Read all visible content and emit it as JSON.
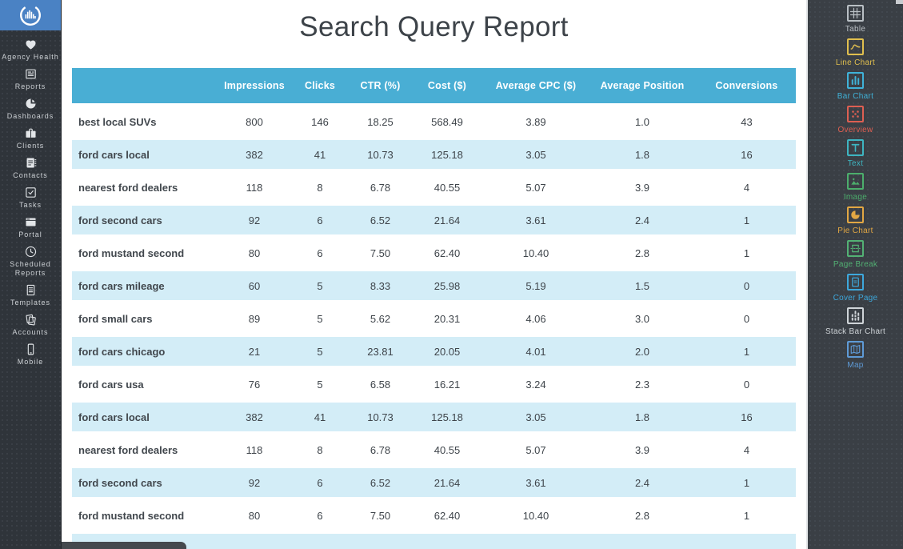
{
  "report": {
    "title": "Search Query Report"
  },
  "left_sidebar": {
    "logo_icon": "bar-chart-circle-logo",
    "items": [
      {
        "id": "agency-health",
        "label": "Agency Health",
        "icon": "heart"
      },
      {
        "id": "reports",
        "label": "Reports",
        "icon": "report-document"
      },
      {
        "id": "dashboards",
        "label": "Dashboards",
        "icon": "pie-dashboard"
      },
      {
        "id": "clients",
        "label": "Clients",
        "icon": "briefcase"
      },
      {
        "id": "contacts",
        "label": "Contacts",
        "icon": "address-book"
      },
      {
        "id": "tasks",
        "label": "Tasks",
        "icon": "checkbox"
      },
      {
        "id": "portal",
        "label": "Portal",
        "icon": "browser-window"
      },
      {
        "id": "scheduled-reports",
        "label": "Scheduled Reports",
        "icon": "clock"
      },
      {
        "id": "templates",
        "label": "Templates",
        "icon": "template-document"
      },
      {
        "id": "accounts",
        "label": "Accounts",
        "icon": "stacked-pages"
      },
      {
        "id": "mobile",
        "label": "Mobile",
        "icon": "smartphone"
      }
    ]
  },
  "table": {
    "columns": [
      "",
      "Impressions",
      "Clicks",
      "CTR (%)",
      "Cost ($)",
      "Average CPC ($)",
      "Average Position",
      "Conversions"
    ],
    "rows": [
      [
        "best local SUVs",
        "800",
        "146",
        "18.25",
        "568.49",
        "3.89",
        "1.0",
        "43"
      ],
      [
        "ford cars local",
        "382",
        "41",
        "10.73",
        "125.18",
        "3.05",
        "1.8",
        "16"
      ],
      [
        "nearest ford dealers",
        "118",
        "8",
        "6.78",
        "40.55",
        "5.07",
        "3.9",
        "4"
      ],
      [
        "ford second cars",
        "92",
        "6",
        "6.52",
        "21.64",
        "3.61",
        "2.4",
        "1"
      ],
      [
        "ford mustand second",
        "80",
        "6",
        "7.50",
        "62.40",
        "10.40",
        "2.8",
        "1"
      ],
      [
        "ford cars mileage",
        "60",
        "5",
        "8.33",
        "25.98",
        "5.19",
        "1.5",
        "0"
      ],
      [
        "ford small cars",
        "89",
        "5",
        "5.62",
        "20.31",
        "4.06",
        "3.0",
        "0"
      ],
      [
        "ford cars chicago",
        "21",
        "5",
        "23.81",
        "20.05",
        "4.01",
        "2.0",
        "1"
      ],
      [
        "ford cars usa",
        "76",
        "5",
        "6.58",
        "16.21",
        "3.24",
        "2.3",
        "0"
      ],
      [
        "ford cars local",
        "382",
        "41",
        "10.73",
        "125.18",
        "3.05",
        "1.8",
        "16"
      ],
      [
        "nearest ford dealers",
        "118",
        "8",
        "6.78",
        "40.55",
        "5.07",
        "3.9",
        "4"
      ],
      [
        "ford second cars",
        "92",
        "6",
        "6.52",
        "21.64",
        "3.61",
        "2.4",
        "1"
      ],
      [
        "ford mustand second",
        "80",
        "6",
        "7.50",
        "62.40",
        "10.40",
        "2.8",
        "1"
      ]
    ]
  },
  "right_sidebar": {
    "items": [
      {
        "id": "table",
        "label": "Table",
        "icon": "table-grid",
        "color": "#b9bfc4"
      },
      {
        "id": "line-chart",
        "label": "Line Chart",
        "icon": "line-chart",
        "color": "#e0bf4e"
      },
      {
        "id": "bar-chart",
        "label": "Bar Chart",
        "icon": "bar-chart",
        "color": "#3fb2d8"
      },
      {
        "id": "overview",
        "label": "Overview",
        "icon": "overview-dots",
        "color": "#dd5f52"
      },
      {
        "id": "text",
        "label": "Text",
        "icon": "text",
        "color": "#3eb5c1"
      },
      {
        "id": "image",
        "label": "Image",
        "icon": "image",
        "color": "#4cae6c"
      },
      {
        "id": "pie-chart",
        "label": "Pie Chart",
        "icon": "pie-chart",
        "color": "#e2a743"
      },
      {
        "id": "page-break",
        "label": "Page Break",
        "icon": "page-break",
        "color": "#53b174"
      },
      {
        "id": "cover-page",
        "label": "Cover Page",
        "icon": "cover-page",
        "color": "#3da8dc"
      },
      {
        "id": "stack-bar-chart",
        "label": "Stack Bar Chart",
        "icon": "stacked-bar-chart",
        "color": "#cfd4d8"
      },
      {
        "id": "map",
        "label": "Map",
        "icon": "map",
        "color": "#5e9ad6"
      }
    ]
  },
  "colors": {
    "table_header_bg": "#49aed4",
    "row_stripe_bg": "#d3edf7",
    "logo_bg": "#4a82c4",
    "left_sidebar_bg": "#2f343a",
    "right_sidebar_bg": "#3a3f45"
  }
}
